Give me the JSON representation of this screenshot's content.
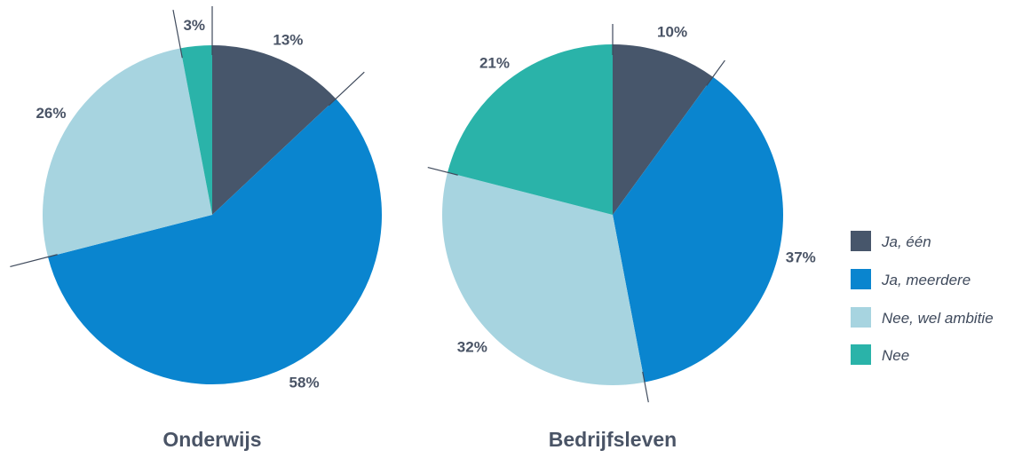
{
  "chart_data": [
    {
      "type": "pie",
      "title": "Onderwijs",
      "categories": [
        "Ja, één",
        "Ja, meerdere",
        "Nee, wel ambitie",
        "Nee"
      ],
      "values": [
        13,
        58,
        26,
        3
      ],
      "labels": [
        "13%",
        "58%",
        "26%",
        "3%"
      ]
    },
    {
      "type": "pie",
      "title": "Bedrijfsleven",
      "categories": [
        "Ja, één",
        "Ja, meerdere",
        "Nee, wel ambitie",
        "Nee"
      ],
      "values": [
        10,
        37,
        32,
        21
      ],
      "labels": [
        "10%",
        "37%",
        "32%",
        "21%"
      ]
    }
  ],
  "legend": {
    "placement": "right",
    "items": [
      {
        "label": "Ja, één",
        "color": "#47566b"
      },
      {
        "label": "Ja, meerdere",
        "color": "#0a85cf"
      },
      {
        "label": "Nee, wel ambitie",
        "color": "#a7d4e0"
      },
      {
        "label": "Nee",
        "color": "#2ab3a9"
      }
    ]
  }
}
